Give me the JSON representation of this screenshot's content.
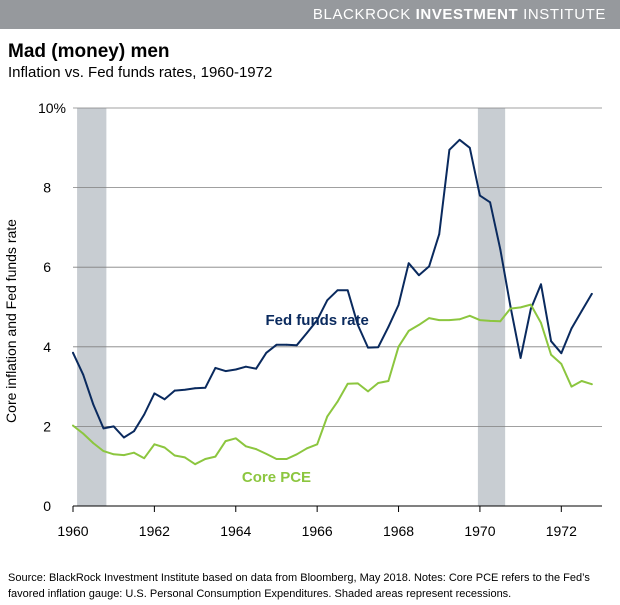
{
  "brand": {
    "part1": "BLACKROCK",
    "part2": "INVESTMENT",
    "part3": "INSTITUTE"
  },
  "chart_data": {
    "type": "line",
    "title": "Mad (money) men",
    "subtitle": "Inflation vs. Fed funds rates, 1960-1972",
    "xlabel": "",
    "ylabel": "Core inflation and Fed funds rate",
    "xlim": [
      1960,
      1973
    ],
    "ylim": [
      0,
      10
    ],
    "x_ticks": [
      1960,
      1962,
      1964,
      1966,
      1968,
      1970,
      1972
    ],
    "x_tick_labels": [
      "1960",
      "1962",
      "1964",
      "1966",
      "1968",
      "1970",
      "1972"
    ],
    "y_ticks": [
      0,
      2,
      4,
      6,
      8,
      10
    ],
    "y_tick_labels": [
      "0",
      "2",
      "4",
      "6",
      "8",
      "10%"
    ],
    "grid": true,
    "recessions": [
      {
        "start": 1960.1,
        "end": 1960.82
      },
      {
        "start": 1969.95,
        "end": 1970.62
      }
    ],
    "series": [
      {
        "name": "Fed funds rate",
        "color": "#0a2a5e",
        "points": [
          [
            1960.0,
            3.85
          ],
          [
            1960.25,
            3.3
          ],
          [
            1960.5,
            2.55
          ],
          [
            1960.75,
            1.95
          ],
          [
            1961.0,
            2.0
          ],
          [
            1961.25,
            1.72
          ],
          [
            1961.5,
            1.88
          ],
          [
            1961.75,
            2.3
          ],
          [
            1962.0,
            2.83
          ],
          [
            1962.25,
            2.68
          ],
          [
            1962.5,
            2.9
          ],
          [
            1962.75,
            2.92
          ],
          [
            1963.0,
            2.96
          ],
          [
            1963.25,
            2.97
          ],
          [
            1963.5,
            3.47
          ],
          [
            1963.75,
            3.39
          ],
          [
            1964.0,
            3.43
          ],
          [
            1964.25,
            3.5
          ],
          [
            1964.5,
            3.45
          ],
          [
            1964.75,
            3.85
          ],
          [
            1965.0,
            4.05
          ],
          [
            1965.25,
            4.05
          ],
          [
            1965.5,
            4.04
          ],
          [
            1965.75,
            4.35
          ],
          [
            1966.0,
            4.67
          ],
          [
            1966.25,
            5.17
          ],
          [
            1966.5,
            5.42
          ],
          [
            1966.75,
            5.42
          ],
          [
            1967.0,
            4.55
          ],
          [
            1967.25,
            3.98
          ],
          [
            1967.5,
            3.99
          ],
          [
            1967.75,
            4.5
          ],
          [
            1968.0,
            5.05
          ],
          [
            1968.25,
            6.1
          ],
          [
            1968.5,
            5.8
          ],
          [
            1968.75,
            6.02
          ],
          [
            1969.0,
            6.83
          ],
          [
            1969.25,
            8.95
          ],
          [
            1969.5,
            9.2
          ],
          [
            1969.75,
            9.0
          ],
          [
            1970.0,
            7.8
          ],
          [
            1970.25,
            7.63
          ],
          [
            1970.5,
            6.45
          ],
          [
            1970.75,
            5.02
          ],
          [
            1971.0,
            3.72
          ],
          [
            1971.25,
            4.95
          ],
          [
            1971.5,
            5.57
          ],
          [
            1971.75,
            4.14
          ],
          [
            1972.0,
            3.84
          ],
          [
            1972.25,
            4.46
          ],
          [
            1972.5,
            4.9
          ],
          [
            1972.75,
            5.33
          ]
        ]
      },
      {
        "name": "Core PCE",
        "color": "#8cc63f",
        "points": [
          [
            1960.0,
            2.02
          ],
          [
            1960.25,
            1.82
          ],
          [
            1960.5,
            1.58
          ],
          [
            1960.75,
            1.38
          ],
          [
            1961.0,
            1.3
          ],
          [
            1961.25,
            1.28
          ],
          [
            1961.5,
            1.34
          ],
          [
            1961.75,
            1.2
          ],
          [
            1962.0,
            1.55
          ],
          [
            1962.25,
            1.47
          ],
          [
            1962.5,
            1.27
          ],
          [
            1962.75,
            1.22
          ],
          [
            1963.0,
            1.05
          ],
          [
            1963.25,
            1.18
          ],
          [
            1963.5,
            1.24
          ],
          [
            1963.75,
            1.63
          ],
          [
            1964.0,
            1.7
          ],
          [
            1964.25,
            1.5
          ],
          [
            1964.5,
            1.43
          ],
          [
            1964.75,
            1.31
          ],
          [
            1965.0,
            1.18
          ],
          [
            1965.25,
            1.18
          ],
          [
            1965.5,
            1.3
          ],
          [
            1965.75,
            1.45
          ],
          [
            1966.0,
            1.55
          ],
          [
            1966.25,
            2.25
          ],
          [
            1966.5,
            2.62
          ],
          [
            1966.75,
            3.07
          ],
          [
            1967.0,
            3.08
          ],
          [
            1967.25,
            2.88
          ],
          [
            1967.5,
            3.09
          ],
          [
            1967.75,
            3.14
          ],
          [
            1968.0,
            4.0
          ],
          [
            1968.25,
            4.4
          ],
          [
            1968.5,
            4.55
          ],
          [
            1968.75,
            4.72
          ],
          [
            1969.0,
            4.67
          ],
          [
            1969.25,
            4.67
          ],
          [
            1969.5,
            4.69
          ],
          [
            1969.75,
            4.78
          ],
          [
            1970.0,
            4.67
          ],
          [
            1970.25,
            4.65
          ],
          [
            1970.5,
            4.64
          ],
          [
            1970.75,
            4.96
          ],
          [
            1971.0,
            4.99
          ],
          [
            1971.25,
            5.06
          ],
          [
            1971.5,
            4.6
          ],
          [
            1971.75,
            3.8
          ],
          [
            1972.0,
            3.57
          ],
          [
            1972.25,
            3.0
          ],
          [
            1972.5,
            3.14
          ],
          [
            1972.75,
            3.06
          ]
        ]
      }
    ],
    "annotations": [
      {
        "text": "Fed funds rate",
        "series": "Fed funds rate",
        "at": [
          1966.0,
          4.55
        ]
      },
      {
        "text": "Core PCE",
        "series": "Core PCE",
        "at": [
          1965.0,
          0.6
        ]
      }
    ]
  },
  "source_note": "Source: BlackRock Investment Institute based on data from Bloomberg, May 2018. Notes: Core PCE refers to the Fed’s favored inflation gauge: U.S. Personal Consumption Expenditures. Shaded areas represent recessions."
}
